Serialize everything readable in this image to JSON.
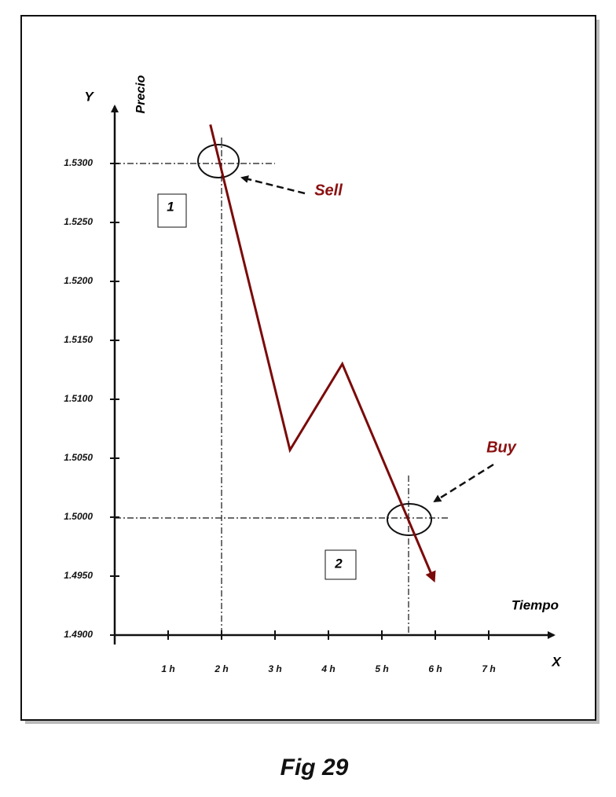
{
  "chart_data": {
    "type": "line",
    "caption": "Fig 29",
    "y_label": "Precio",
    "x_label": "Tiempo",
    "y_axis_name": "Y",
    "x_axis_name": "X",
    "annotations": {
      "sell": "Sell",
      "buy": "Buy",
      "box1": "1",
      "box2": "2"
    },
    "x": [
      1.79,
      3.28,
      4.26,
      5.97
    ],
    "values": [
      1.5333,
      1.5057,
      1.513,
      1.4947
    ],
    "color": "#7b0a0a",
    "xlim": [
      0,
      8.2
    ],
    "ylim": [
      1.49,
      1.535
    ],
    "xticks": [
      {
        "value": 1,
        "label": "1 h"
      },
      {
        "value": 2,
        "label": "2 h"
      },
      {
        "value": 3,
        "label": "3 h"
      },
      {
        "value": 4,
        "label": "4 h"
      },
      {
        "value": 5,
        "label": "5 h"
      },
      {
        "value": 6,
        "label": "6 h"
      },
      {
        "value": 7,
        "label": "7 h"
      }
    ],
    "yticks": [
      {
        "value": 1.49,
        "label": "1.4900"
      },
      {
        "value": 1.495,
        "label": "1.4950"
      },
      {
        "value": 1.5,
        "label": "1.5000"
      },
      {
        "value": 1.505,
        "label": "1.5050"
      },
      {
        "value": 1.51,
        "label": "1.5100"
      },
      {
        "value": 1.515,
        "label": "1.5150"
      },
      {
        "value": 1.52,
        "label": "1.5200"
      },
      {
        "value": 1.525,
        "label": "1.5250"
      },
      {
        "value": 1.53,
        "label": "1.5300"
      }
    ]
  }
}
